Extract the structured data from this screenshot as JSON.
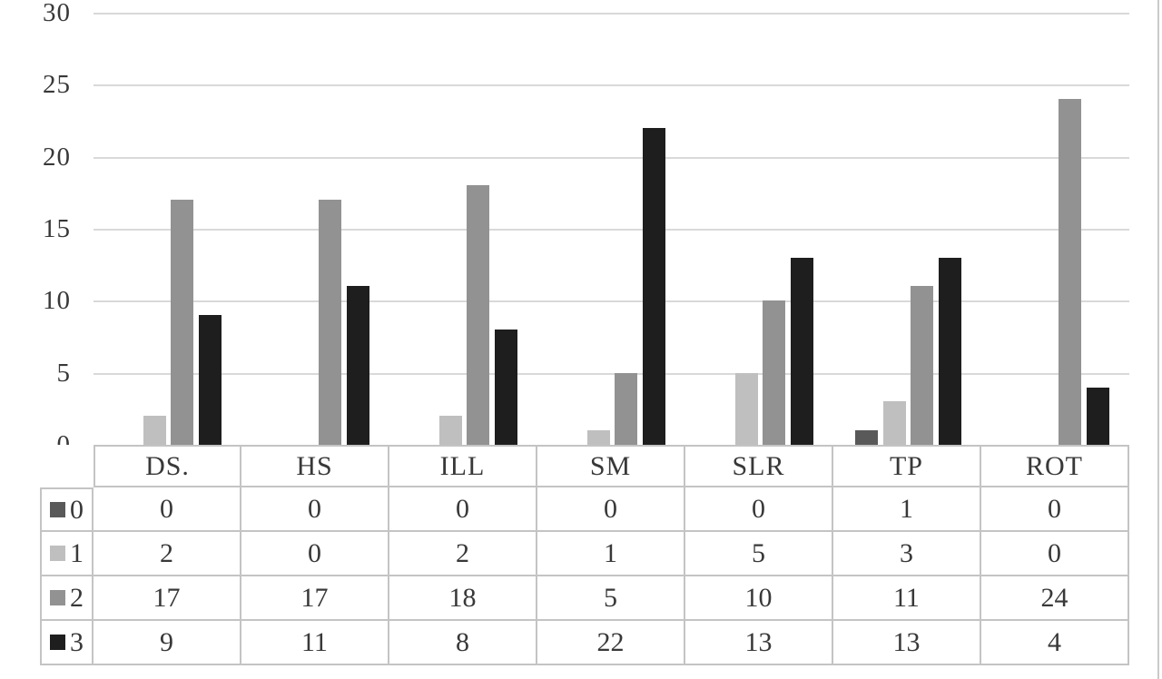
{
  "chart_data": {
    "type": "bar",
    "title": "",
    "xlabel": "",
    "ylabel": "",
    "categories": [
      "DS.",
      "HS",
      "ILL",
      "SM",
      "SLR",
      "TP",
      "ROT"
    ],
    "series": [
      {
        "name": "0",
        "color": "#595959",
        "values": [
          0,
          0,
          0,
          0,
          0,
          1,
          0
        ]
      },
      {
        "name": "1",
        "color": "#bfbfbf",
        "values": [
          2,
          0,
          2,
          1,
          5,
          3,
          0
        ]
      },
      {
        "name": "2",
        "color": "#929292",
        "values": [
          17,
          17,
          18,
          5,
          10,
          11,
          24
        ]
      },
      {
        "name": "3",
        "color": "#1e1e1e",
        "values": [
          9,
          11,
          8,
          22,
          13,
          13,
          4
        ]
      }
    ],
    "y_ticks": [
      30,
      25,
      20,
      15,
      10,
      5,
      0
    ],
    "ylim": [
      0,
      30
    ],
    "grid": true,
    "legend_position": "data-table-left-column",
    "data_table_shown": true
  },
  "colors": {
    "gridline": "#d9d9d9",
    "table_border": "#c4c4c4",
    "text": "#383838",
    "frame_edge": "#c9c9c9",
    "background": "#ffffff"
  }
}
